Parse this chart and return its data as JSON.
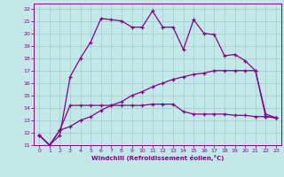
{
  "xlabel": "Windchill (Refroidissement éolien,°C)",
  "bg_color": "#c2e8e8",
  "line_color": "#880088",
  "grid_color": "#a0cccc",
  "xlim": [
    -0.5,
    23.5
  ],
  "ylim": [
    11,
    22.4
  ],
  "xticks": [
    0,
    1,
    2,
    3,
    4,
    5,
    6,
    7,
    8,
    9,
    10,
    11,
    12,
    13,
    14,
    15,
    16,
    17,
    18,
    19,
    20,
    21,
    22,
    23
  ],
  "yticks": [
    11,
    12,
    13,
    14,
    15,
    16,
    17,
    18,
    19,
    20,
    21,
    22
  ],
  "line1_x": [
    0,
    1,
    2,
    3,
    4,
    5,
    6,
    7,
    8,
    9,
    10,
    11,
    12,
    13,
    14,
    15,
    16,
    17,
    18,
    19,
    20,
    21,
    22,
    23
  ],
  "line1_y": [
    11.8,
    11.0,
    11.8,
    16.5,
    18.0,
    19.3,
    21.2,
    21.1,
    21.0,
    20.5,
    20.5,
    21.8,
    20.5,
    20.5,
    18.7,
    21.1,
    20.0,
    19.9,
    18.2,
    18.3,
    17.8,
    17.0,
    13.3,
    13.2
  ],
  "line2_x": [
    0,
    1,
    2,
    3,
    4,
    5,
    6,
    7,
    8,
    9,
    10,
    11,
    12,
    13,
    14,
    15,
    16,
    17,
    18,
    19,
    20,
    21,
    22,
    23
  ],
  "line2_y": [
    11.8,
    11.0,
    12.2,
    14.2,
    14.2,
    14.2,
    14.2,
    14.2,
    14.2,
    14.2,
    14.2,
    14.3,
    14.3,
    14.3,
    13.7,
    13.5,
    13.5,
    13.5,
    13.5,
    13.4,
    13.4,
    13.3,
    13.3,
    13.2
  ],
  "line3_x": [
    0,
    1,
    2,
    3,
    4,
    5,
    6,
    7,
    8,
    9,
    10,
    11,
    12,
    13,
    14,
    15,
    16,
    17,
    18,
    19,
    20,
    21,
    22,
    23
  ],
  "line3_y": [
    11.8,
    11.0,
    12.2,
    12.5,
    13.0,
    13.3,
    13.8,
    14.2,
    14.5,
    15.0,
    15.3,
    15.7,
    16.0,
    16.3,
    16.5,
    16.7,
    16.8,
    17.0,
    17.0,
    17.0,
    17.0,
    17.0,
    13.5,
    13.2
  ]
}
